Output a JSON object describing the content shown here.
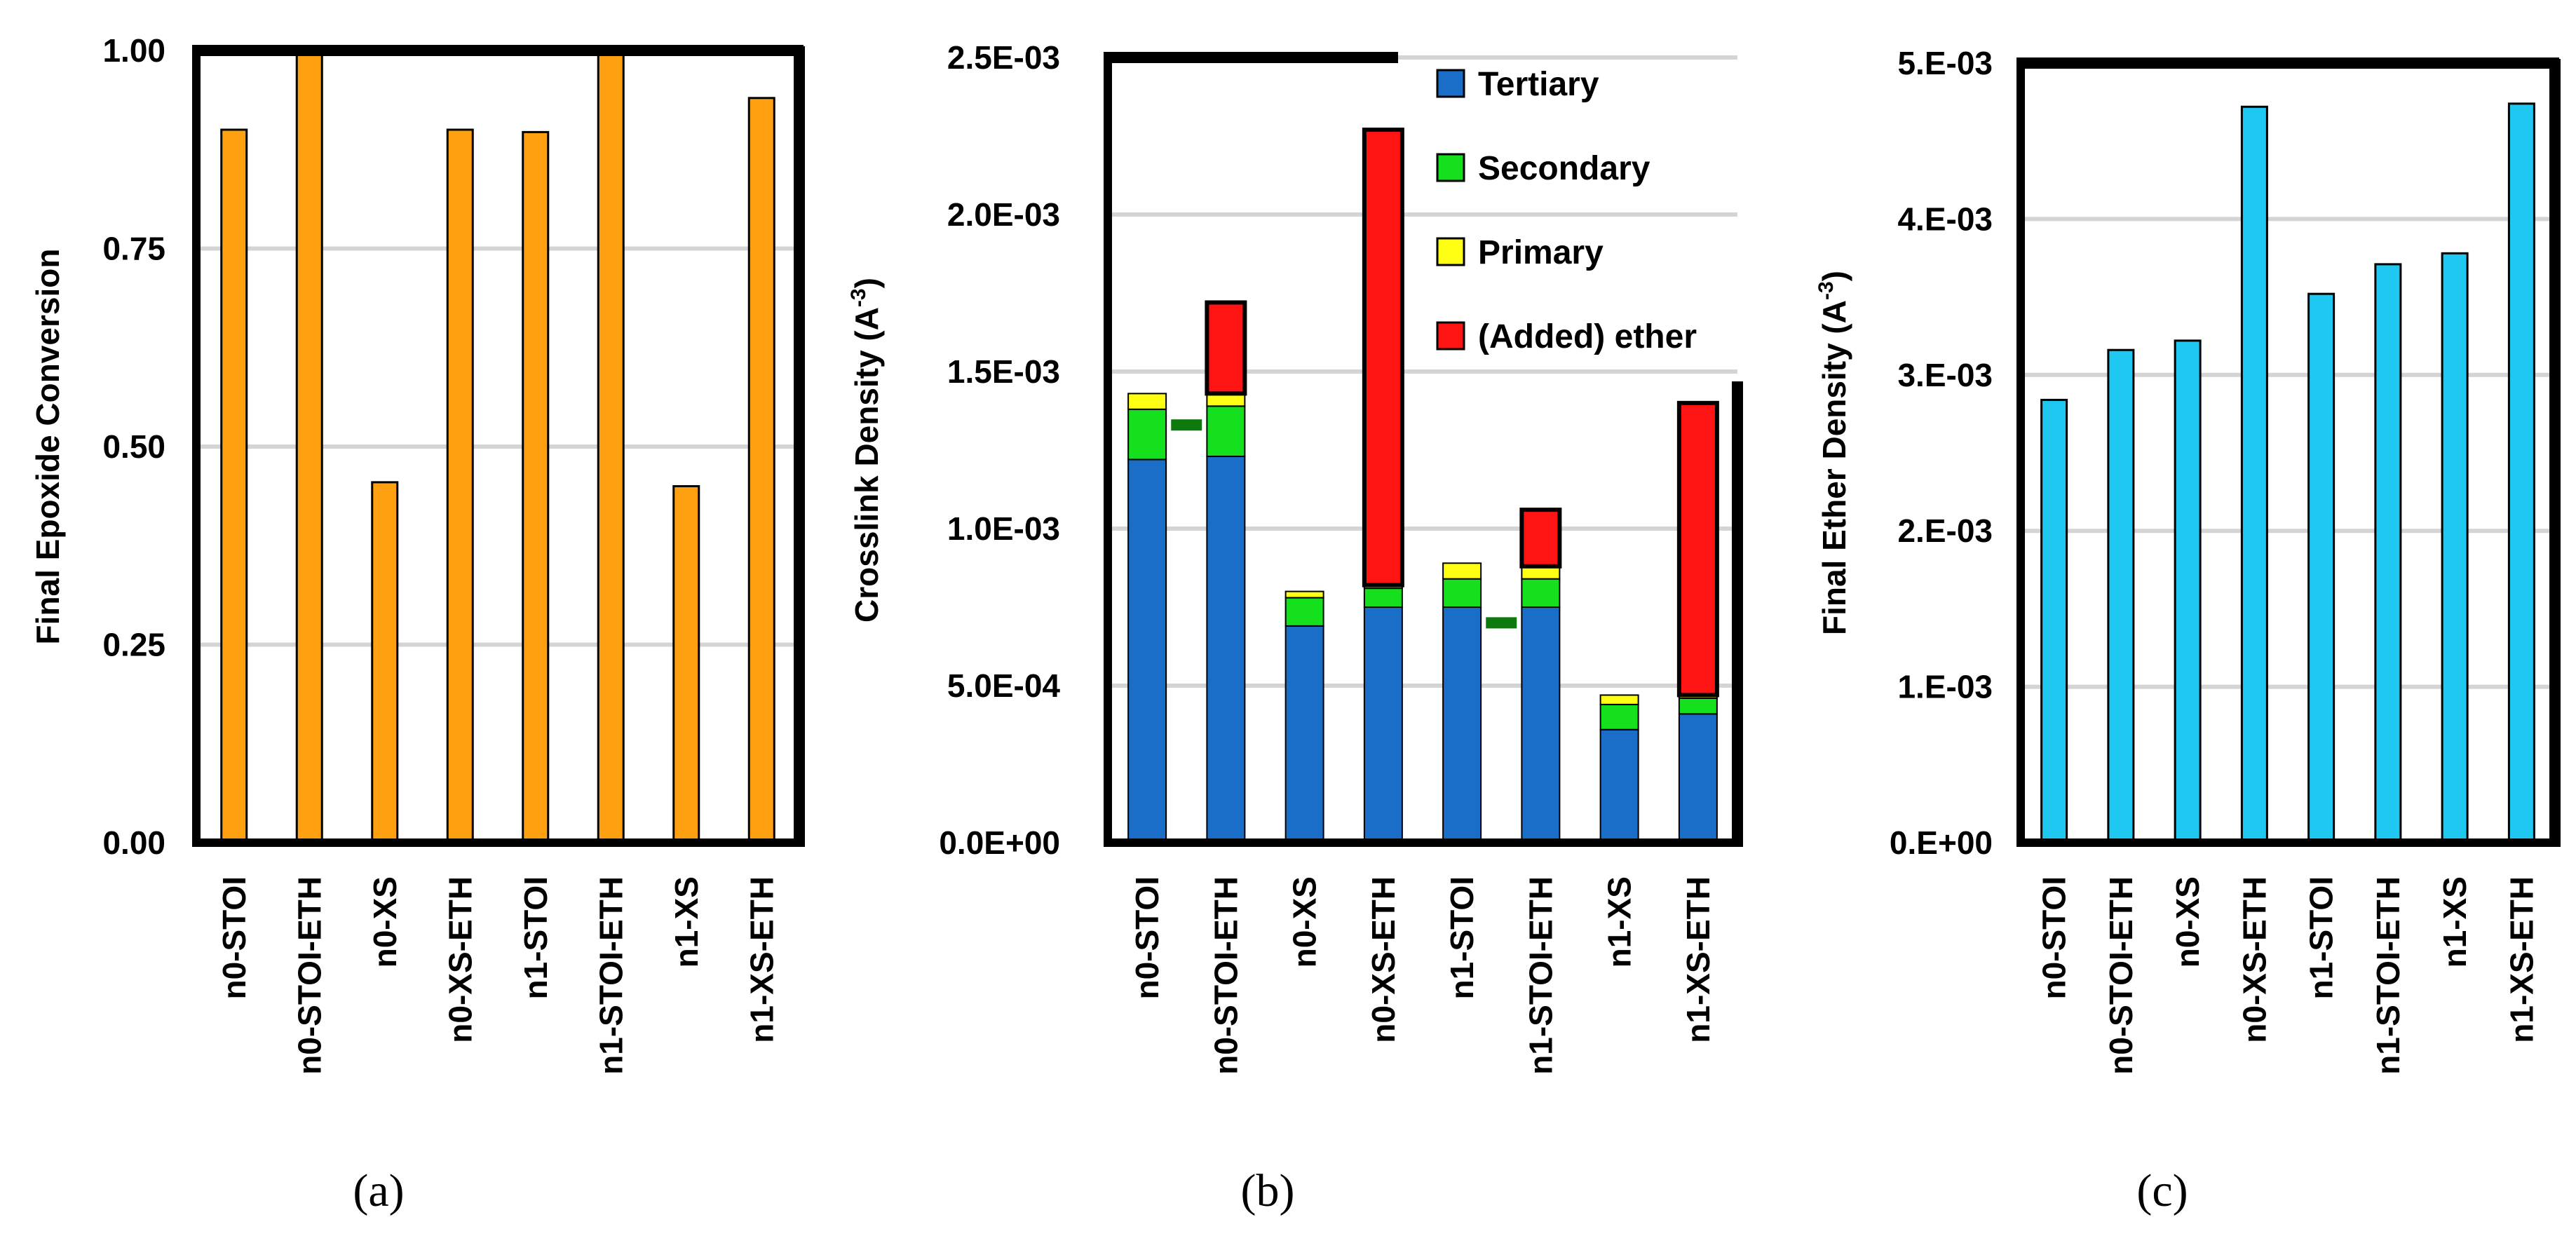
{
  "chart_data": [
    {
      "id": "a",
      "type": "bar",
      "panel_label": "(a)",
      "ylabel": "Final Epoxide Conversion",
      "ylim": [
        0,
        1
      ],
      "yticks": [
        0,
        0.25,
        0.5,
        0.75,
        1
      ],
      "ytick_labels": [
        "0.00",
        "0.25",
        "0.50",
        "0.75",
        "1.00"
      ],
      "categories": [
        "n0-STOI",
        "n0-STOI-ETH",
        "n0-XS",
        "n0-XS-ETH",
        "n1-STOI",
        "n1-STOI-ETH",
        "n1-XS",
        "n1-XS-ETH"
      ],
      "series": [
        {
          "name": "Final Epoxide Conversion",
          "color": "#FFA010",
          "values": [
            0.9,
            1.0,
            0.455,
            0.9,
            0.897,
            1.0,
            0.45,
            0.94
          ]
        }
      ],
      "grid": true,
      "legend": "none"
    },
    {
      "id": "b",
      "type": "stacked-bar",
      "panel_label": "(b)",
      "ylabel": "Crosslink Density (A",
      "ylabel_sup": "-3",
      "ylabel_close": ")",
      "ylim": [
        0,
        0.0025
      ],
      "yticks": [
        0,
        0.0005,
        0.001,
        0.0015,
        0.002,
        0.0025
      ],
      "ytick_labels": [
        "0.0E+00",
        "5.0E-04",
        "1.0E-03",
        "1.5E-03",
        "2.0E-03",
        "2.5E-03"
      ],
      "categories": [
        "n0-STOI",
        "n0-STOI-ETH",
        "n0-XS",
        "n0-XS-ETH",
        "n1-STOI",
        "n1-STOI-ETH",
        "n1-XS",
        "n1-XS-ETH"
      ],
      "series": [
        {
          "name": "Tertiary",
          "color": "#1A6EC8",
          "values": [
            0.00122,
            0.00123,
            0.00069,
            0.00075,
            0.00075,
            0.00075,
            0.00036,
            0.00041
          ]
        },
        {
          "name": "Secondary",
          "color": "#14E01E",
          "values": [
            0.00016,
            0.00016,
            9e-05,
            6e-05,
            9e-05,
            9e-05,
            8e-05,
            5e-05
          ]
        },
        {
          "name": "Primary",
          "color": "#FFFF14",
          "values": [
            5e-05,
            4e-05,
            2e-05,
            1e-05,
            5e-05,
            4e-05,
            3e-05,
            1e-05
          ]
        },
        {
          "name": "(Added) ether",
          "color": "#FF1414",
          "values": [
            0,
            0.00029,
            0,
            0.00145,
            0,
            0.00018,
            0,
            0.00093
          ]
        }
      ],
      "markers": [
        {
          "x_between": [
            0,
            1
          ],
          "value": 0.00133,
          "color": "#0E7A0E"
        },
        {
          "x_between": [
            4,
            5
          ],
          "value": 0.0007,
          "color": "#0E7A0E"
        }
      ],
      "grid": true,
      "legend": "top-right"
    },
    {
      "id": "c",
      "type": "bar",
      "panel_label": "(c)",
      "ylabel": "Final Ether Density (A",
      "ylabel_sup": "-3",
      "ylabel_close": ")",
      "ylim": [
        0,
        0.005
      ],
      "yticks": [
        0,
        0.001,
        0.002,
        0.003,
        0.004,
        0.005
      ],
      "ytick_labels": [
        "0.E+00",
        "1.E-03",
        "2.E-03",
        "3.E-03",
        "4.E-03",
        "5.E-03"
      ],
      "categories": [
        "n0-STOI",
        "n0-STOI-ETH",
        "n0-XS",
        "n0-XS-ETH",
        "n1-STOI",
        "n1-STOI-ETH",
        "n1-XS",
        "n1-XS-ETH"
      ],
      "series": [
        {
          "name": "Final Ether Density",
          "color": "#1EC8F0",
          "values": [
            0.00284,
            0.00316,
            0.00322,
            0.00472,
            0.00352,
            0.00371,
            0.00378,
            0.00474
          ]
        }
      ],
      "grid": true,
      "legend": "none"
    }
  ]
}
